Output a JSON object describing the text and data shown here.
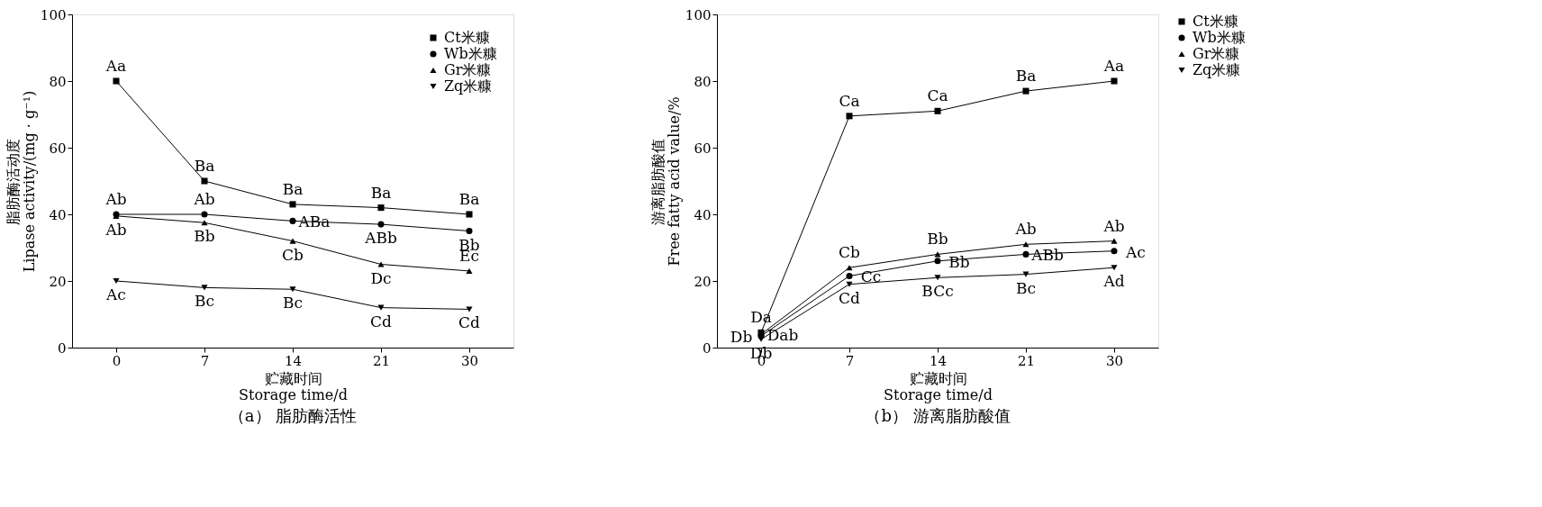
{
  "chart_data": [
    {
      "type": "line",
      "title": "（a） 脂肪酶活性",
      "xlabel": "贮藏时间\nStorage time/d",
      "ylabel": "脂肪酶活动度\nLipase activity/(mg · g⁻¹)",
      "categories": [
        "0",
        "7",
        "14",
        "21",
        "30"
      ],
      "ylim": [
        0,
        100
      ],
      "yticks": [
        0,
        20,
        40,
        60,
        80,
        100
      ],
      "grid": false,
      "legend": "top right",
      "line_style": "solid",
      "series": [
        {
          "name": "Ct米糠",
          "color": "#000000",
          "marker": "square",
          "values": [
            80,
            50,
            43,
            42,
            40
          ]
        },
        {
          "name": "Wb米糠",
          "color": "#000000",
          "marker": "circle",
          "values": [
            40,
            40,
            38,
            37,
            35
          ]
        },
        {
          "name": "Gr米糠",
          "color": "#000000",
          "marker": "triangle",
          "values": [
            39.5,
            37.5,
            32,
            25,
            23
          ]
        },
        {
          "name": "Zq米糠",
          "color": "#000000",
          "marker": "triangle-down",
          "values": [
            20,
            18,
            17.5,
            12,
            11.5
          ]
        }
      ],
      "annotations": [
        {
          "text": "Aa",
          "x": "0",
          "y": 80
        },
        {
          "text": "Ab",
          "x": "0",
          "y": 40
        },
        {
          "text": "Ab",
          "x": "0",
          "y": 39.5
        },
        {
          "text": "Ac",
          "x": "0",
          "y": 20
        },
        {
          "text": "Ba",
          "x": "7",
          "y": 50
        },
        {
          "text": "Ab",
          "x": "7",
          "y": 40
        },
        {
          "text": "Bb",
          "x": "7",
          "y": 37.5
        },
        {
          "text": "Bc",
          "x": "7",
          "y": 18
        },
        {
          "text": "Ba",
          "x": "14",
          "y": 43
        },
        {
          "text": "ABa",
          "x": "14",
          "y": 38
        },
        {
          "text": "Cb",
          "x": "14",
          "y": 32
        },
        {
          "text": "Bc",
          "x": "14",
          "y": 17.5
        },
        {
          "text": "Ba",
          "x": "21",
          "y": 42
        },
        {
          "text": "ABb",
          "x": "21",
          "y": 37
        },
        {
          "text": "Dc",
          "x": "21",
          "y": 25
        },
        {
          "text": "Cd",
          "x": "21",
          "y": 12
        },
        {
          "text": "Ba",
          "x": "30",
          "y": 40
        },
        {
          "text": "Bb",
          "x": "30",
          "y": 35
        },
        {
          "text": "Ec",
          "x": "30",
          "y": 23
        },
        {
          "text": "Cd",
          "x": "30",
          "y": 11.5
        }
      ]
    },
    {
      "type": "line",
      "title": "（b） 游离脂肪酸值",
      "xlabel": "贮藏时间\nStorage time/d",
      "ylabel": "游离脂肪酸值\nFree fatty acid  value/%",
      "categories": [
        "0",
        "7",
        "14",
        "21",
        "30"
      ],
      "ylim": [
        0,
        100
      ],
      "yticks": [
        0,
        20,
        40,
        60,
        80,
        100
      ],
      "grid": false,
      "legend": "right",
      "line_style": "solid",
      "series": [
        {
          "name": "Ct米糠",
          "color": "#000000",
          "marker": "square",
          "values": [
            4.5,
            69.5,
            71,
            77,
            80
          ]
        },
        {
          "name": "Wb米糠",
          "color": "#000000",
          "marker": "circle",
          "values": [
            3.5,
            21.5,
            26,
            28,
            29
          ]
        },
        {
          "name": "Gr米糠",
          "color": "#000000",
          "marker": "triangle",
          "values": [
            4,
            24,
            28,
            31,
            32
          ]
        },
        {
          "name": "Zq米糠",
          "color": "#000000",
          "marker": "triangle-down",
          "values": [
            2.5,
            19,
            21,
            22,
            24
          ]
        }
      ],
      "annotations": [
        {
          "text": "Da",
          "x": "0",
          "y": 4.5
        },
        {
          "text": "Dab",
          "x": "0",
          "y": 4
        },
        {
          "text": "Db",
          "x": "0",
          "y": 3.5
        },
        {
          "text": "Db",
          "x": "0",
          "y": 2.5
        },
        {
          "text": "Ca",
          "x": "7",
          "y": 69.5
        },
        {
          "text": "Cb",
          "x": "7",
          "y": 24
        },
        {
          "text": "Cc",
          "x": "7",
          "y": 21.5
        },
        {
          "text": "Cd",
          "x": "7",
          "y": 19
        },
        {
          "text": "Ca",
          "x": "14",
          "y": 71
        },
        {
          "text": "Bb",
          "x": "14",
          "y": 28
        },
        {
          "text": "Bb",
          "x": "14",
          "y": 26
        },
        {
          "text": "BCc",
          "x": "14",
          "y": 21
        },
        {
          "text": "Ba",
          "x": "21",
          "y": 77
        },
        {
          "text": "Ab",
          "x": "21",
          "y": 31
        },
        {
          "text": "ABb",
          "x": "21",
          "y": 28
        },
        {
          "text": "Bc",
          "x": "21",
          "y": 22
        },
        {
          "text": "Aa",
          "x": "30",
          "y": 80
        },
        {
          "text": "Ab",
          "x": "30",
          "y": 32
        },
        {
          "text": "Ac",
          "x": "30",
          "y": 29
        },
        {
          "text": "Ad",
          "x": "30",
          "y": 24
        }
      ]
    }
  ]
}
